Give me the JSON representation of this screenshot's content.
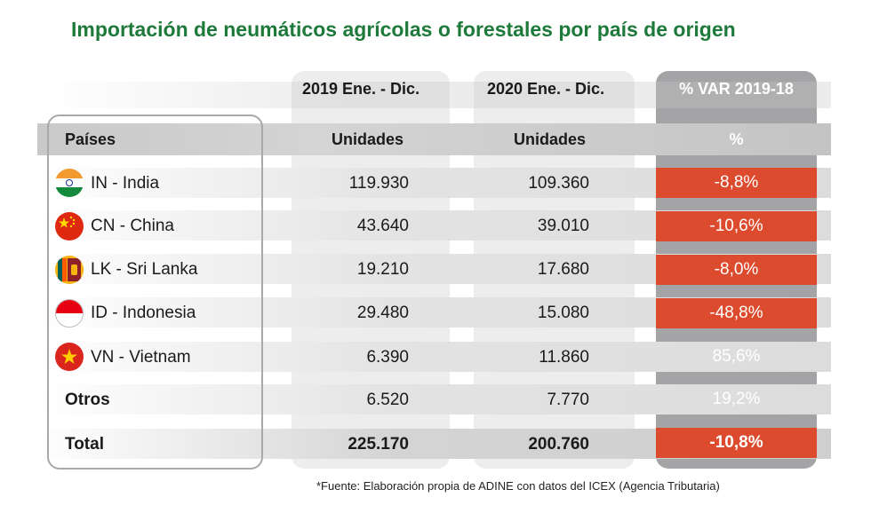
{
  "title": "Importación de neumáticos agrícolas o forestales por país de origen",
  "headers": {
    "col2019": "2019 Ene. - Dic.",
    "col2020": "2020 Ene. - Dic.",
    "colvar": "% VAR 2019-18",
    "paises": "Países",
    "unidades2019": "Unidades",
    "unidades2020": "Unidades",
    "percent": "%"
  },
  "rows": [
    {
      "country": "IN - India",
      "flag": "india-flag-icon",
      "v2019": "119.930",
      "v2020": "109.360",
      "var": "-8,8%",
      "negative": true
    },
    {
      "country": "CN - China",
      "flag": "china-flag-icon",
      "v2019": "43.640",
      "v2020": "39.010",
      "var": "-10,6%",
      "negative": true
    },
    {
      "country": "LK - Sri Lanka",
      "flag": "sri-lanka-flag-icon",
      "v2019": "19.210",
      "v2020": "17.680",
      "var": "-8,0%",
      "negative": true
    },
    {
      "country": "ID - Indonesia",
      "flag": "indonesia-flag-icon",
      "v2019": "29.480",
      "v2020": "15.080",
      "var": "-48,8%",
      "negative": true
    },
    {
      "country": "VN - Vietnam",
      "flag": "vietnam-flag-icon",
      "v2019": "6.390",
      "v2020": "11.860",
      "var": "85,6%",
      "negative": false
    },
    {
      "country": "Otros",
      "v2019": "6.520",
      "v2020": "7.770",
      "var": "19,2%",
      "negative": false
    },
    {
      "country": "Total",
      "v2019": "225.170",
      "v2020": "200.760",
      "var": "-10,8%",
      "negative": true
    }
  ],
  "colors": {
    "title": "#1e7a3a",
    "negative": "#dd4b2e",
    "var_column": "#a4a4a6"
  },
  "footnote": "*Fuente: Elaboración propia de ADINE con datos del ICEX (Agencia Tributaria)"
}
